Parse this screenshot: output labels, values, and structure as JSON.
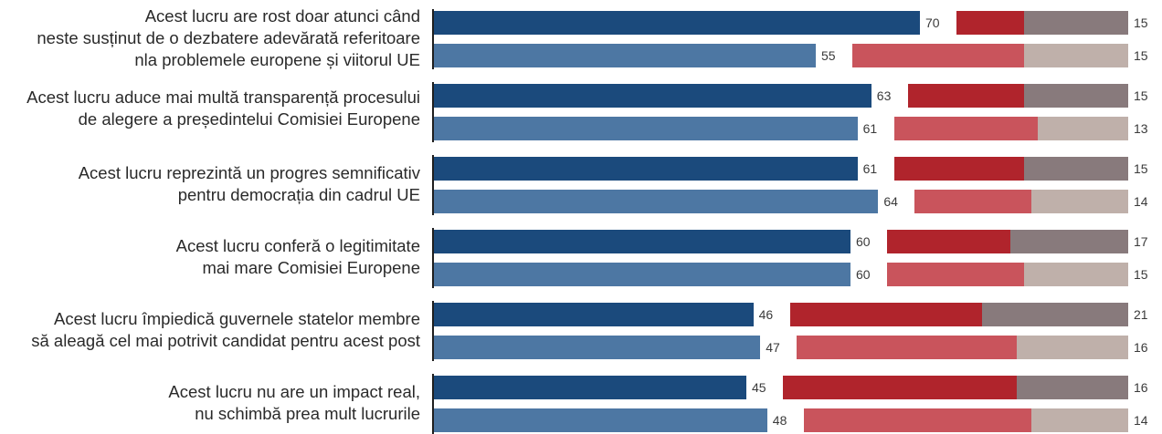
{
  "chart_data": {
    "type": "bar",
    "orientation": "horizontal",
    "stacked_layout": "three segments per bar, each segment drawn on its own column",
    "colors": {
      "agree_a": "#1b4a7c",
      "agree_b": "#4d77a3",
      "disagree_a": "#b0242c",
      "disagree_b": "#c9545c",
      "dk_a": "#887a7c",
      "dk_b": "#bfb0aa"
    },
    "categories": [
      {
        "label_lines": [
          "Acest lucru are rost doar atunci când",
          "neste susținut de o dezbatere adevărată referitoare",
          "nla problemele europene și viitorul UE"
        ],
        "bars": [
          [
            70,
            15,
            15
          ],
          [
            55,
            30,
            15
          ]
        ]
      },
      {
        "label_lines": [
          "Acest lucru aduce mai multă transparență procesului",
          "de alegere a președintelui Comisiei Europene"
        ],
        "bars": [
          [
            63,
            22,
            15
          ],
          [
            61,
            26,
            13
          ]
        ]
      },
      {
        "label_lines": [
          "Acest lucru reprezintă un progres semnificativ",
          "pentru democrația din cadrul UE"
        ],
        "bars": [
          [
            61,
            24,
            15
          ],
          [
            64,
            22,
            14
          ]
        ]
      },
      {
        "label_lines": [
          "Acest lucru conferă o legitimitate",
          "mai mare Comisiei Europene"
        ],
        "bars": [
          [
            60,
            23,
            17
          ],
          [
            60,
            25,
            15
          ]
        ]
      },
      {
        "label_lines": [
          "Acest lucru împiedică guvernele statelor membre",
          "să aleagă cel mai potrivit candidat pentru acest post"
        ],
        "bars": [
          [
            46,
            33,
            21
          ],
          [
            47,
            37,
            16
          ]
        ]
      },
      {
        "label_lines": [
          "Acest lucru nu are un impact real,",
          "nu schimbă prea mult lucrurile"
        ],
        "bars": [
          [
            45,
            39,
            16
          ],
          [
            48,
            38,
            14
          ]
        ]
      }
    ]
  }
}
